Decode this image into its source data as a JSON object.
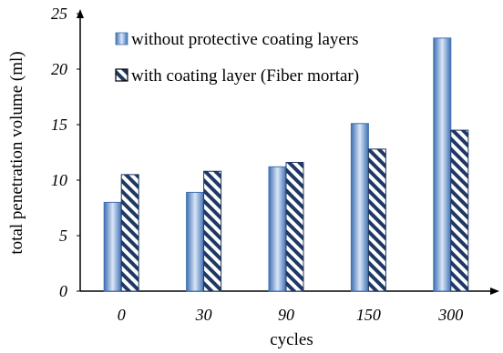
{
  "chart_data": {
    "type": "bar",
    "categories": [
      "0",
      "30",
      "90",
      "150",
      "300"
    ],
    "series": [
      {
        "name": "without protective coating layers",
        "values": [
          8.0,
          8.9,
          11.2,
          15.1,
          22.8
        ],
        "color": "#5b8fd0"
      },
      {
        "name": "with coating layer (Fiber mortar)",
        "values": [
          10.5,
          10.8,
          11.6,
          12.8,
          14.5
        ],
        "color": "#1f3864"
      }
    ],
    "title": "",
    "xlabel": "cycles",
    "ylabel": "total penetration volume (ml)",
    "ylim": [
      0,
      25
    ],
    "yticks": [
      0,
      5,
      10,
      15,
      20,
      25
    ],
    "grid": false,
    "legend_position": "top-left"
  }
}
